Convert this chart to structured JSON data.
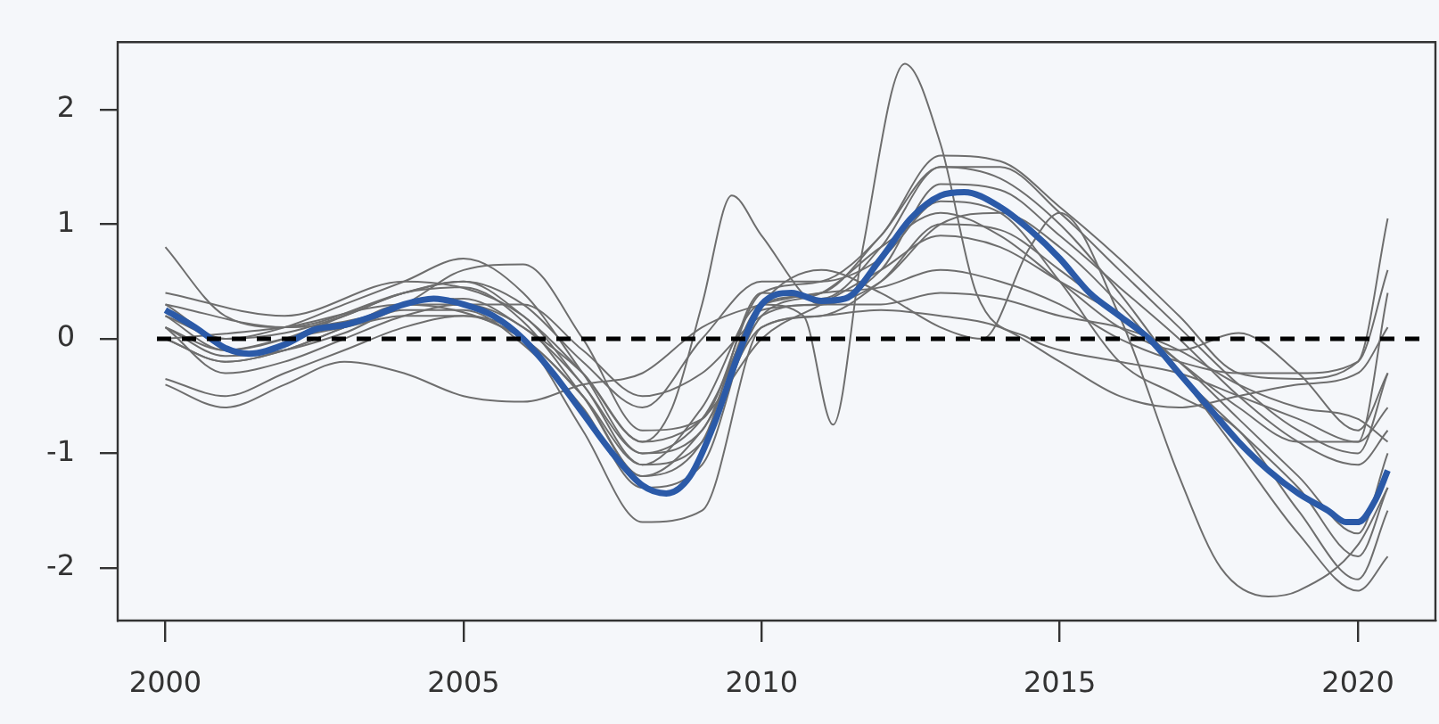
{
  "chart_data": {
    "type": "line",
    "x": [
      2000,
      2001,
      2002,
      2003,
      2004,
      2005,
      2006,
      2007,
      2008,
      2009,
      2010,
      2011,
      2012,
      2013,
      2014,
      2015,
      2016,
      2017,
      2018,
      2019,
      2020,
      2020.5
    ],
    "xlim": [
      1999.2,
      2021.3
    ],
    "xticks": [
      2000,
      2005,
      2010,
      2015,
      2020
    ],
    "ylim": [
      -2.46,
      2.59
    ],
    "yticks": [
      -2,
      -1,
      0,
      1,
      2
    ],
    "marker": "none",
    "ref_lines": [
      {
        "axis": "y",
        "value": 0,
        "color": "#000000",
        "line_style": "dashed"
      }
    ],
    "series": [
      {
        "color": "#6e6e6e",
        "values": [
          0.1,
          -0.15,
          -0.1,
          0.05,
          0.25,
          0.25,
          -0.05,
          -0.6,
          -1.3,
          -1.1,
          0.25,
          0.3,
          0.6,
          1.35,
          1.3,
          0.9,
          0.45,
          0.0,
          -0.5,
          -0.9,
          -1.1,
          -0.8
        ]
      },
      {
        "color": "#6e6e6e",
        "values": [
          0.3,
          0.0,
          0.05,
          0.2,
          0.4,
          0.45,
          0.15,
          -0.5,
          -1.2,
          -0.9,
          0.4,
          0.35,
          0.8,
          1.5,
          1.5,
          1.1,
          0.6,
          0.1,
          -0.4,
          -0.8,
          -1.0,
          -0.3
        ]
      },
      {
        "color": "#6e6e6e",
        "values": [
          -0.35,
          -0.5,
          -0.3,
          -0.1,
          0.1,
          0.2,
          0.0,
          -0.8,
          -1.6,
          -1.5,
          0.1,
          0.2,
          0.5,
          1.0,
          0.95,
          0.6,
          0.2,
          -0.2,
          -0.6,
          -0.9,
          -0.9,
          0.4
        ]
      },
      {
        "color": "#6e6e6e",
        "values": [
          0.8,
          0.2,
          0.1,
          0.15,
          0.3,
          0.6,
          0.65,
          0.0,
          -0.8,
          -0.7,
          0.4,
          0.5,
          0.9,
          1.6,
          1.55,
          1.15,
          0.7,
          0.2,
          -0.3,
          -0.35,
          -0.2,
          1.05
        ]
      },
      {
        "color": "#6e6e6e",
        "values": [
          -0.4,
          -0.6,
          -0.4,
          -0.2,
          -0.3,
          -0.5,
          -0.55,
          -0.4,
          -0.3,
          0.1,
          0.3,
          0.4,
          0.45,
          0.6,
          0.5,
          0.3,
          0.0,
          -0.2,
          -0.3,
          -0.3,
          -0.2,
          0.6
        ]
      },
      {
        "color": "#6e6e6e",
        "values": [
          0.0,
          -0.2,
          -0.1,
          0.1,
          0.3,
          0.35,
          0.1,
          -0.3,
          -0.9,
          -0.7,
          0.0,
          0.3,
          0.6,
          0.9,
          0.8,
          0.5,
          0.2,
          -0.2,
          -0.7,
          -1.2,
          -1.7,
          -1.0
        ]
      },
      {
        "color": "#6e6e6e",
        "values": [
          0.2,
          -0.1,
          0.0,
          0.2,
          0.4,
          0.5,
          0.3,
          -0.2,
          -0.6,
          0.0,
          0.5,
          0.5,
          0.7,
          1.2,
          1.1,
          0.5,
          -0.2,
          -0.5,
          -0.8,
          -1.5,
          -2.1,
          -1.5
        ]
      },
      {
        "color": "#6e6e6e",
        "values": [
          0.1,
          -0.3,
          -0.2,
          0.0,
          0.2,
          0.3,
          0.3,
          -0.1,
          -0.5,
          -0.3,
          0.2,
          0.3,
          0.3,
          0.4,
          0.35,
          0.2,
          0.1,
          -0.1,
          -0.4,
          -0.6,
          -0.7,
          -0.9
        ]
      },
      {
        "color": "#6e6e6e",
        "x": [
          2000,
          2002,
          2004,
          2005,
          2006,
          2007,
          2008,
          2008.5,
          2009,
          2009.5,
          2010,
          2011,
          2012,
          2013,
          2014,
          2015,
          2016,
          2017,
          2018,
          2019,
          2020,
          2020.5
        ],
        "values": [
          0.3,
          0.1,
          0.4,
          0.5,
          0.2,
          -0.3,
          -0.9,
          -0.6,
          0.3,
          1.25,
          0.9,
          0.3,
          0.5,
          1.0,
          1.1,
          0.8,
          0.3,
          -0.3,
          -0.8,
          -1.3,
          -1.9,
          -1.3
        ]
      },
      {
        "color": "#6e6e6e",
        "x": [
          2000,
          2002,
          2004,
          2006,
          2007,
          2008,
          2009,
          2010,
          2010.7,
          2011.2,
          2011.7,
          2012.4,
          2013,
          2013.6,
          2014.5,
          2015,
          2016,
          2017,
          2018,
          2019,
          2020,
          2020.5
        ],
        "values": [
          0.0,
          0.1,
          0.3,
          0.0,
          -0.5,
          -1.1,
          -0.6,
          0.3,
          0.2,
          -0.75,
          0.8,
          2.4,
          1.7,
          0.4,
          0.0,
          -0.1,
          -0.2,
          -0.3,
          -0.5,
          -0.7,
          -0.9,
          -0.6
        ]
      },
      {
        "color": "#6e6e6e",
        "x": [
          2000,
          2002,
          2004,
          2006,
          2007,
          2008,
          2009,
          2010,
          2011,
          2012,
          2013,
          2013.7,
          2014.5,
          2015,
          2016,
          2017,
          2017.7,
          2018.5,
          2019,
          2020,
          2020.5
        ],
        "values": [
          0.4,
          0.2,
          0.5,
          0.2,
          -0.4,
          -1.0,
          -0.7,
          0.3,
          0.6,
          0.4,
          0.1,
          0.0,
          0.8,
          1.1,
          0.2,
          -1.2,
          -2.0,
          -2.25,
          -2.2,
          -1.8,
          -1.3
        ]
      },
      {
        "color": "#6e6e6e",
        "values": [
          0.2,
          0.0,
          0.1,
          0.3,
          0.5,
          0.7,
          0.4,
          -0.3,
          -1.0,
          -0.8,
          0.3,
          0.4,
          0.9,
          1.5,
          1.4,
          1.0,
          0.4,
          -0.3,
          -1.0,
          -1.7,
          -2.2,
          -1.9
        ]
      },
      {
        "color": "#6e6e6e",
        "values": [
          0.1,
          -0.1,
          0.0,
          0.1,
          0.2,
          0.2,
          0.0,
          -0.5,
          -1.2,
          -0.8,
          0.1,
          0.2,
          0.25,
          0.2,
          0.1,
          -0.2,
          -0.5,
          -0.6,
          -0.5,
          -0.4,
          -0.3,
          0.1
        ]
      },
      {
        "color": "#6e6e6e",
        "values": [
          0.0,
          -0.2,
          -0.1,
          0.1,
          0.3,
          0.3,
          0.1,
          -0.4,
          -1.1,
          -0.9,
          0.2,
          0.4,
          0.8,
          1.1,
          0.9,
          0.5,
          0.1,
          -0.1,
          0.05,
          -0.3,
          -0.8,
          -0.3
        ]
      },
      {
        "color": "#2b5aa8",
        "x": [
          2000,
          2000.5,
          2001,
          2001.4,
          2002,
          2002.5,
          2003,
          2003.5,
          2004,
          2004.5,
          2005,
          2005.5,
          2006,
          2006.5,
          2007,
          2007.5,
          2008,
          2008.4,
          2008.8,
          2009.2,
          2009.6,
          2010,
          2010.5,
          2011,
          2011.4,
          2012,
          2012.5,
          2013,
          2013.4,
          2014,
          2014.5,
          2015,
          2015.5,
          2016,
          2016.5,
          2017,
          2017.5,
          2018,
          2018.5,
          2019,
          2019.5,
          2019.8,
          2020,
          2020.3,
          2020.5
        ],
        "values": [
          0.25,
          0.1,
          -0.08,
          -0.13,
          -0.05,
          0.08,
          0.12,
          0.2,
          0.3,
          0.35,
          0.3,
          0.2,
          0.0,
          -0.3,
          -0.65,
          -1.0,
          -1.28,
          -1.35,
          -1.2,
          -0.75,
          -0.15,
          0.3,
          0.4,
          0.33,
          0.35,
          0.7,
          1.05,
          1.25,
          1.28,
          1.15,
          0.95,
          0.7,
          0.4,
          0.2,
          0.0,
          -0.3,
          -0.6,
          -0.9,
          -1.15,
          -1.35,
          -1.5,
          -1.6,
          -1.6,
          -1.4,
          -1.15
        ]
      }
    ]
  }
}
